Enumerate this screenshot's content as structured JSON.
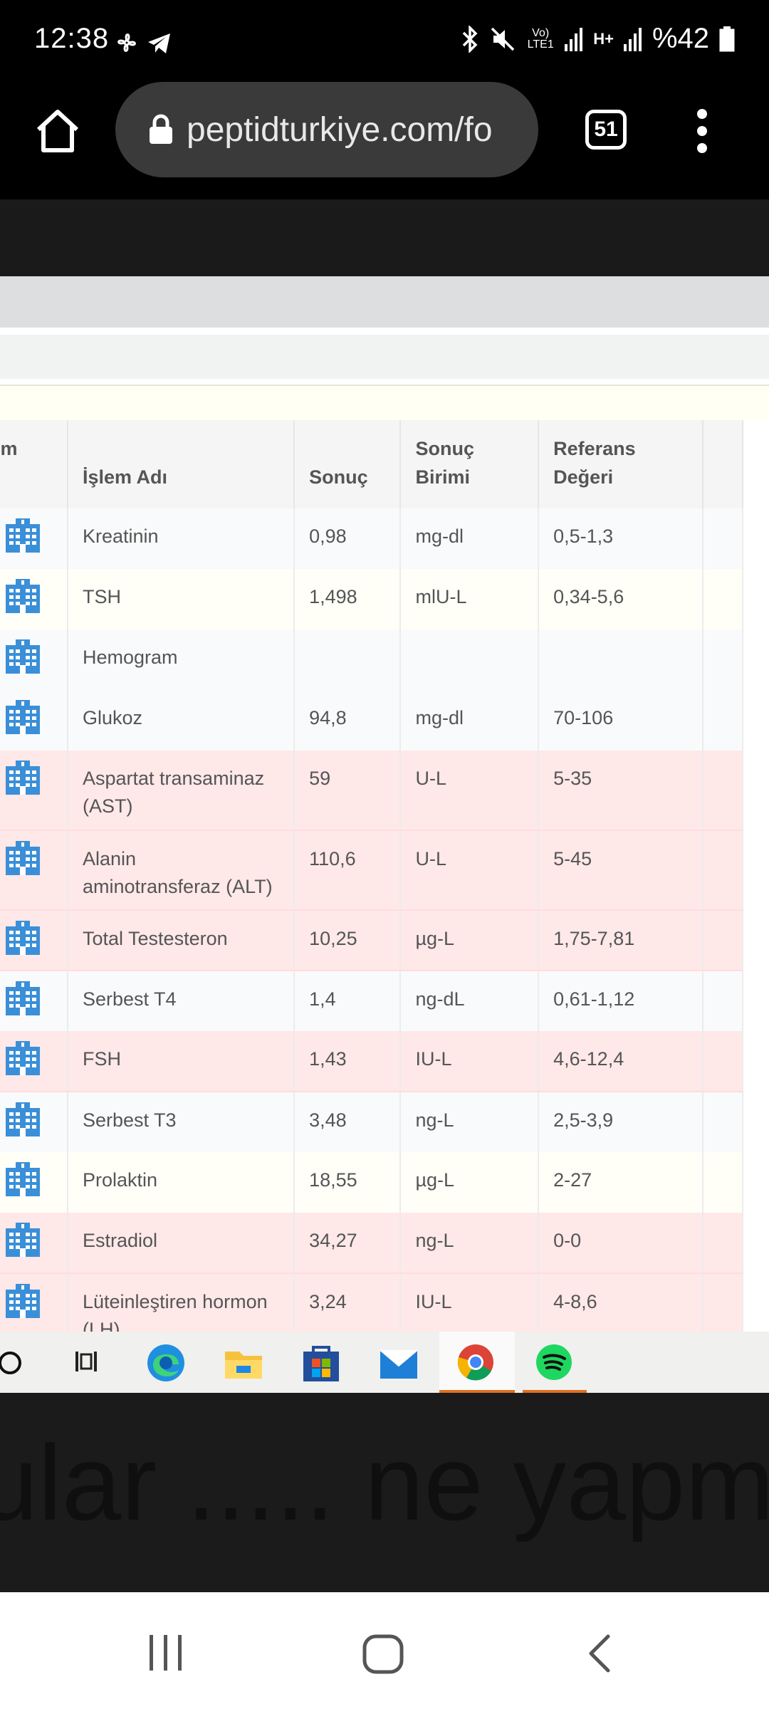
{
  "status_bar": {
    "time": "12:38",
    "network_label": "Vo) LTE1",
    "data_label": "H+",
    "battery": "%42"
  },
  "browser": {
    "url": "peptidturkiye.com/fo",
    "tab_count": "51"
  },
  "table": {
    "columns": [
      "um",
      "İşlem Adı",
      "Sonuç",
      "Sonuç Birimi",
      "Referans Değeri"
    ],
    "rows": [
      {
        "name": "Kreatinin",
        "result": "0,98",
        "unit": "mg-dl",
        "ref": "0,5-1,3",
        "flag": "normal"
      },
      {
        "name": "TSH",
        "result": "1,498",
        "unit": "mlU-L",
        "ref": "0,34-5,6",
        "flag": "alt"
      },
      {
        "name": "Hemogram",
        "result": "",
        "unit": "",
        "ref": "",
        "flag": "normal"
      },
      {
        "name": "Glukoz",
        "result": "94,8",
        "unit": "mg-dl",
        "ref": "70-106",
        "flag": "normal"
      },
      {
        "name": "Aspartat transaminaz (AST)",
        "result": "59",
        "unit": "U-L",
        "ref": "5-35",
        "flag": "high"
      },
      {
        "name": "Alanin aminotransferaz (ALT)",
        "result": "110,6",
        "unit": "U-L",
        "ref": "5-45",
        "flag": "high"
      },
      {
        "name": "Total Testesteron",
        "result": "10,25",
        "unit": "µg-L",
        "ref": "1,75-7,81",
        "flag": "high"
      },
      {
        "name": "Serbest T4",
        "result": "1,4",
        "unit": "ng-dL",
        "ref": "0,61-1,12",
        "flag": "normal"
      },
      {
        "name": "FSH",
        "result": "1,43",
        "unit": "IU-L",
        "ref": "4,6-12,4",
        "flag": "high"
      },
      {
        "name": "Serbest T3",
        "result": "3,48",
        "unit": "ng-L",
        "ref": "2,5-3,9",
        "flag": "normal"
      },
      {
        "name": "Prolaktin",
        "result": "18,55",
        "unit": "µg-L",
        "ref": "2-27",
        "flag": "alt"
      },
      {
        "name": "Estradiol",
        "result": "34,27",
        "unit": "ng-L",
        "ref": "0-0",
        "flag": "high"
      },
      {
        "name": "Lüteinleştiren hormon (LH)",
        "result": "3,24",
        "unit": "IU-L",
        "ref": "4-8,6",
        "flag": "high"
      }
    ]
  },
  "background_text": "ular ..... ne yapm",
  "colors": {
    "accent_blue": "#3a8fd8",
    "high_row": "#ffe8e8"
  }
}
